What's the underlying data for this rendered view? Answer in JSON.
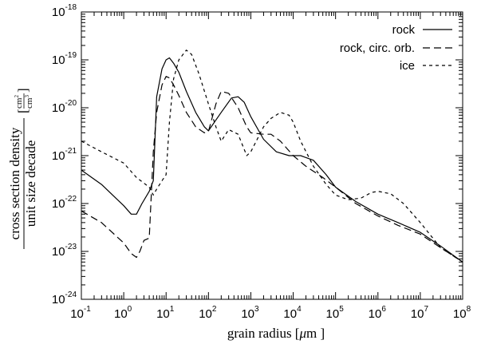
{
  "chart_data": {
    "type": "line",
    "title": "",
    "xlabel_main": "grain radius [",
    "xlabel_mu": "μ",
    "xlabel_unit": "m ]",
    "ylabel_numerator": "cross section density",
    "ylabel_denominator": "unit size decade",
    "ylabel_unit_numerator": "cm",
    "ylabel_unit_numerator_exp": "2",
    "ylabel_unit_denominator": "cm",
    "ylabel_unit_denominator_exp": "3",
    "x_scale": "log",
    "y_scale": "log",
    "xlim": [
      0.1,
      100000000
    ],
    "ylim": [
      1e-24,
      1e-18
    ],
    "x_ticks": [
      {
        "base": "10",
        "exp": "-1",
        "value": 0.1
      },
      {
        "base": "10",
        "exp": "0",
        "value": 1
      },
      {
        "base": "10",
        "exp": "1",
        "value": 10
      },
      {
        "base": "10",
        "exp": "2",
        "value": 100
      },
      {
        "base": "10",
        "exp": "3",
        "value": 1000
      },
      {
        "base": "10",
        "exp": "4",
        "value": 10000
      },
      {
        "base": "10",
        "exp": "5",
        "value": 100000
      },
      {
        "base": "10",
        "exp": "6",
        "value": 1000000
      },
      {
        "base": "10",
        "exp": "7",
        "value": 10000000
      },
      {
        "base": "10",
        "exp": "8",
        "value": 100000000
      }
    ],
    "y_ticks": [
      {
        "base": "10",
        "exp": "-24",
        "value": 1e-24
      },
      {
        "base": "10",
        "exp": "-23",
        "value": 1e-23
      },
      {
        "base": "10",
        "exp": "-22",
        "value": 1e-22
      },
      {
        "base": "10",
        "exp": "-21",
        "value": 1e-21
      },
      {
        "base": "10",
        "exp": "-20",
        "value": 1e-20
      },
      {
        "base": "10",
        "exp": "-19",
        "value": 1e-19
      },
      {
        "base": "10",
        "exp": "-18",
        "value": 1e-18
      }
    ],
    "legend_position": "top-right",
    "series": [
      {
        "name": "rock",
        "dash": "solid",
        "x": [
          0.1,
          0.3,
          1,
          1.5,
          2,
          2.7,
          4,
          5,
          6,
          8,
          10,
          12,
          15,
          20,
          30,
          50,
          80,
          100,
          200,
          350,
          500,
          700,
          1000,
          2000,
          4000,
          8000,
          15000,
          30000,
          60000,
          100000,
          300000,
          1000000,
          3000000,
          10000000,
          30000000,
          100000000
        ],
        "y": [
          5e-22,
          2.5e-22,
          9e-23,
          6e-23,
          6e-23,
          1e-22,
          1.8e-22,
          3e-22,
          1.7e-20,
          6.5e-20,
          1e-19,
          1.1e-19,
          8.5e-20,
          5.5e-20,
          2.2e-20,
          8e-21,
          4e-21,
          3.3e-21,
          8e-21,
          1.6e-20,
          1.7e-20,
          1.3e-20,
          6.5e-21,
          2.2e-21,
          1.2e-21,
          1e-21,
          1e-21,
          8e-22,
          4e-22,
          2.2e-22,
          1.1e-22,
          6e-23,
          4e-23,
          2.5e-23,
          1.3e-23,
          6e-24
        ]
      },
      {
        "name": "rock, circ. orb.",
        "dash": "long-dash",
        "x": [
          0.1,
          0.3,
          1,
          1.5,
          2,
          2.4,
          3,
          4,
          5,
          6,
          8,
          10,
          12,
          15,
          20,
          30,
          50,
          80,
          100,
          150,
          200,
          300,
          500,
          800,
          1000,
          2000,
          3000,
          5000,
          10000,
          20000,
          50000,
          100000,
          300000,
          1000000,
          3000000,
          10000000,
          30000000,
          100000000
        ],
        "y": [
          7e-23,
          4e-23,
          1.5e-23,
          9e-24,
          7.5e-24,
          1e-23,
          1.7e-23,
          1.9e-23,
          1.2e-21,
          8e-21,
          3e-20,
          4.5e-20,
          4.2e-20,
          3e-20,
          1.8e-20,
          8e-21,
          4e-21,
          3e-21,
          3.2e-21,
          1.2e-20,
          2.2e-20,
          2e-20,
          1e-20,
          4e-21,
          3e-21,
          2.8e-21,
          2.8e-21,
          2e-21,
          1e-21,
          6e-22,
          3.5e-22,
          2.2e-22,
          1e-22,
          5.5e-23,
          3.5e-23,
          2.3e-23,
          1.2e-23,
          6e-24
        ]
      },
      {
        "name": "ice",
        "dash": "short-dash",
        "x": [
          0.1,
          0.3,
          1,
          2,
          4,
          5,
          6,
          8,
          10,
          12,
          15,
          20,
          30,
          40,
          60,
          100,
          150,
          200,
          300,
          500,
          800,
          1000,
          2000,
          3000,
          5000,
          8000,
          10000,
          15000,
          30000,
          60000,
          100000,
          200000,
          400000,
          700000,
          1000000,
          2000000,
          4000000,
          10000000,
          30000000,
          100000000
        ],
        "y": [
          2e-21,
          1.2e-21,
          7e-22,
          3.5e-22,
          2.2e-22,
          1.5e-22,
          2e-22,
          3e-22,
          4e-22,
          5e-21,
          4e-20,
          1e-19,
          1.6e-19,
          1.3e-19,
          5e-20,
          1.2e-20,
          4e-21,
          2e-21,
          3.5e-21,
          2.8e-21,
          1e-21,
          1.2e-21,
          4e-21,
          6e-21,
          8e-21,
          7e-21,
          5e-21,
          2e-21,
          6e-22,
          2.5e-22,
          1.5e-22,
          1.2e-22,
          1.3e-22,
          1.7e-22,
          1.8e-22,
          1.6e-22,
          1e-22,
          4e-23,
          1.2e-23,
          6e-24
        ]
      }
    ]
  }
}
